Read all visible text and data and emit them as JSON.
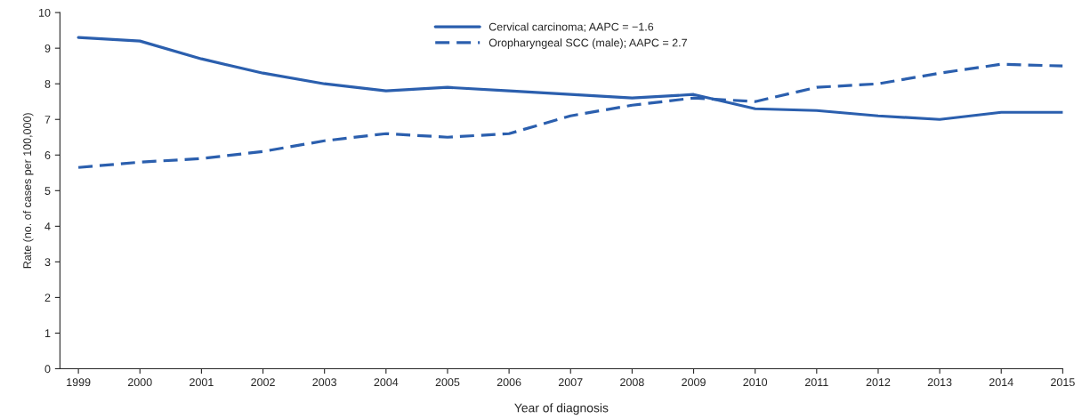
{
  "chart_data": {
    "type": "line",
    "xlabel": "Year of diagnosis",
    "ylabel": "Rate (no. of cases per 100,000)",
    "x": [
      1999,
      2000,
      2001,
      2002,
      2003,
      2004,
      2005,
      2006,
      2007,
      2008,
      2009,
      2010,
      2011,
      2012,
      2013,
      2014,
      2015
    ],
    "series": [
      {
        "name": "Cervical carcinoma; AAPC = −1.6",
        "color": "#2b5fae",
        "line_style": "solid",
        "values": [
          9.3,
          9.2,
          8.7,
          8.3,
          8.0,
          7.8,
          7.9,
          7.8,
          7.7,
          7.6,
          7.7,
          7.3,
          7.25,
          7.1,
          7.0,
          7.2,
          7.2
        ]
      },
      {
        "name": "Oropharyngeal SCC (male); AAPC = 2.7",
        "color": "#2b5fae",
        "line_style": "dashed",
        "values": [
          5.65,
          5.8,
          5.9,
          6.1,
          6.4,
          6.6,
          6.5,
          6.6,
          7.1,
          7.4,
          7.6,
          7.5,
          7.9,
          8.0,
          8.3,
          8.55,
          8.5
        ]
      }
    ],
    "xlim": [
      1998.7,
      2015
    ],
    "xticks": [
      1999,
      2000,
      2001,
      2002,
      2003,
      2004,
      2005,
      2006,
      2007,
      2008,
      2009,
      2010,
      2011,
      2012,
      2013,
      2014,
      2015
    ],
    "ylim": [
      0,
      10
    ],
    "yticks": [
      0,
      1,
      2,
      3,
      4,
      5,
      6,
      7,
      8,
      9,
      10
    ],
    "grid": false,
    "legend": "top",
    "marker": "none"
  }
}
